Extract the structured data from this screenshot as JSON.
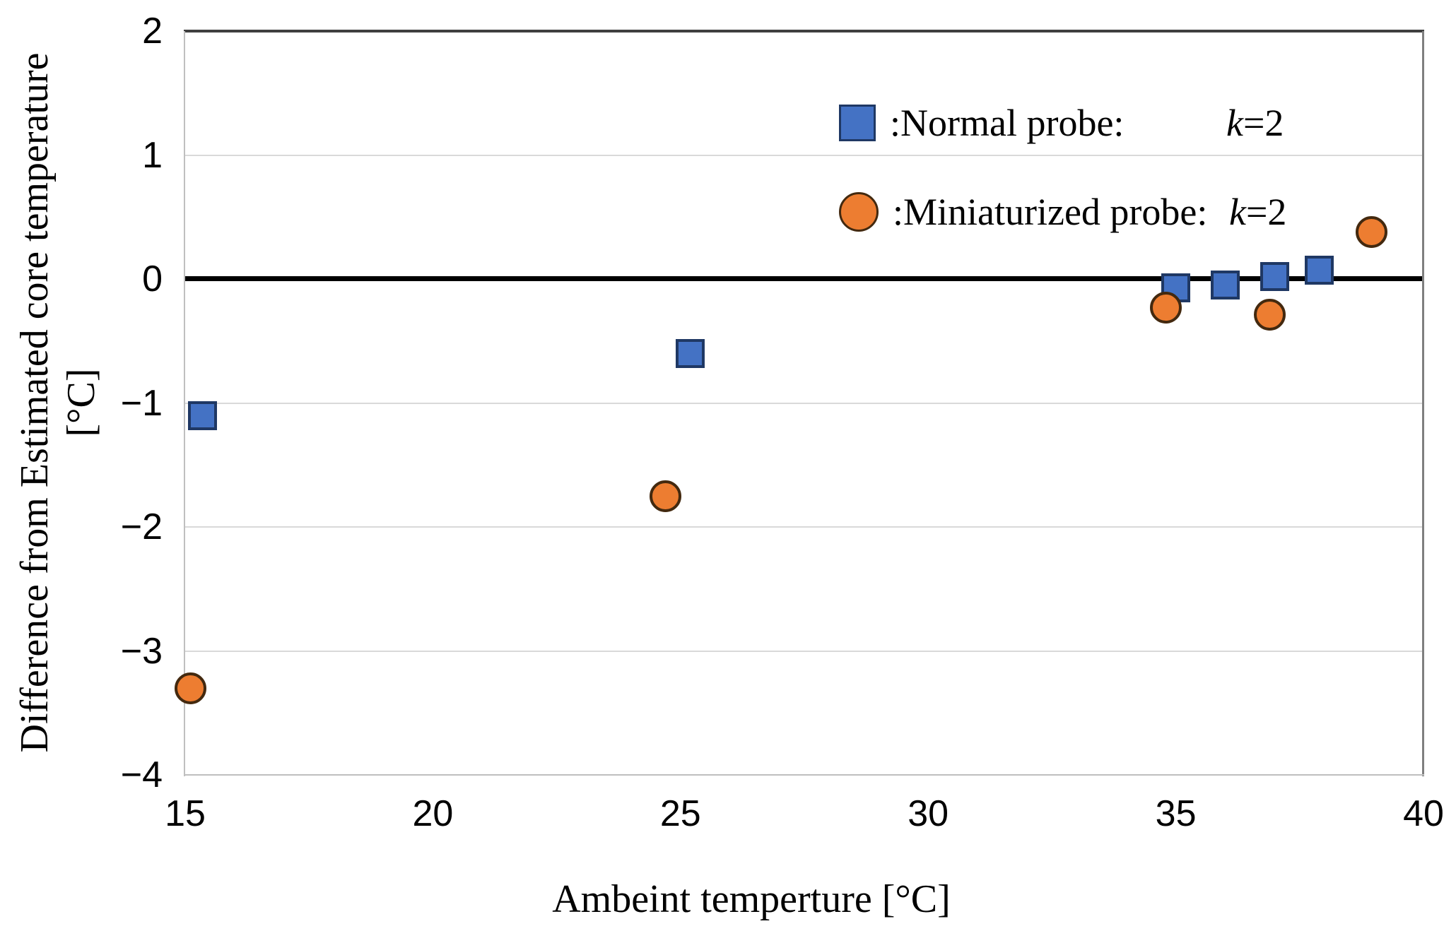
{
  "colors": {
    "blue_fill": "#4472C4",
    "blue_border": "#1F3864",
    "orange_fill": "#ED7D31",
    "orange_border": "#43290F",
    "zero_line": "#000000",
    "gridline": "#D9D9D9",
    "plot_border_top": "#3F3F3F",
    "plot_border_side": "#7F7F7F",
    "text": "#000000"
  },
  "chart_data": {
    "type": "scatter",
    "title": "",
    "xlabel": "Ambeint temperture [°C]",
    "ylabel_line1": "Difference from Estimated core temperature",
    "ylabel_line2": "[°C]",
    "xlim": [
      15,
      40
    ],
    "ylim": [
      -4,
      2
    ],
    "x_ticks": [
      15,
      20,
      25,
      30,
      35,
      40
    ],
    "y_ticks": [
      2,
      1,
      0,
      -1,
      -2,
      -3,
      -4
    ],
    "grid_y_values": [
      1,
      -1,
      -2,
      -3
    ],
    "zero_line_y": 0,
    "grid": "horizontal-only",
    "legend_position": "top-right-inside",
    "series": [
      {
        "name": "Normal probe",
        "marker": "square",
        "fill": "#4472C4",
        "border": "#1F3864",
        "points": [
          [
            15.35,
            -1.1
          ],
          [
            25.2,
            -0.6
          ],
          [
            35.0,
            -0.07
          ],
          [
            36.0,
            -0.05
          ],
          [
            37.0,
            0.02
          ],
          [
            37.9,
            0.07
          ]
        ]
      },
      {
        "name": "Miniaturized probe",
        "marker": "circle",
        "fill": "#ED7D31",
        "border": "#43290F",
        "points": [
          [
            15.1,
            -3.3
          ],
          [
            24.7,
            -1.75
          ],
          [
            34.8,
            -0.23
          ],
          [
            36.9,
            -0.29
          ],
          [
            38.95,
            0.38
          ]
        ]
      }
    ],
    "legend": {
      "rows": [
        {
          "marker": "square",
          "label": ":Normal probe:",
          "k_var": "k",
          "k_value": "=2"
        },
        {
          "marker": "circle",
          "label": ":Miniaturized probe:",
          "k_var": "k",
          "k_value": "=2"
        }
      ]
    }
  }
}
